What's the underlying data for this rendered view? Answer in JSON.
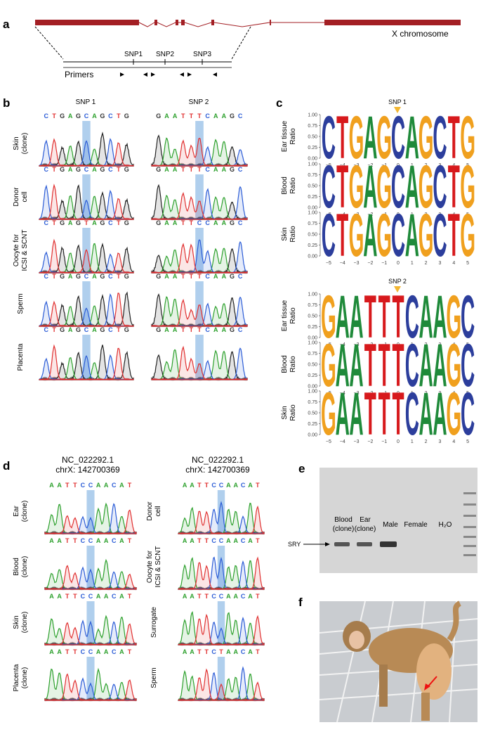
{
  "panel_a": {
    "label": "a",
    "chromosome": "X chromosome",
    "snps": [
      "SNP1",
      "SNP2",
      "SNP3"
    ],
    "primers": "Primers"
  },
  "panel_b": {
    "label": "b",
    "columns": [
      "SNP 1",
      "SNP 2"
    ],
    "rows": [
      {
        "label": [
          "Skin",
          "(clone)"
        ],
        "sequences": [
          "CTGAGCAGCTG",
          "GAATTTCAAGC"
        ]
      },
      {
        "label": [
          "Donor",
          "cell"
        ],
        "sequences": [
          "CTGAGCAGCTG",
          "GAATTTCAAGC"
        ]
      },
      {
        "label": [
          "Oocyte for",
          "ICSI & SCNT"
        ],
        "sequences": [
          "CTGAGTAGCTG",
          "GAATTCCAAGC"
        ]
      },
      {
        "label": [
          "Sperm"
        ],
        "sequences": [
          "CTGAGCAGCTG",
          "GAATTTCAAGC"
        ]
      },
      {
        "label": [
          "Placenta"
        ],
        "sequences": [
          "CTGAGCAGCTG",
          "GAATTTCAAGC"
        ]
      }
    ]
  },
  "panel_c": {
    "label": "c",
    "yticks": [
      "1.00",
      "0.75",
      "0.50",
      "0.25",
      "0.00"
    ],
    "xticks": [
      "−5",
      "−4",
      "−3",
      "−2",
      "−1",
      "0",
      "1",
      "2",
      "3",
      "4",
      "5"
    ],
    "groups": [
      {
        "snp": "SNP 1",
        "logos": [
          {
            "ylabel": [
              "Ear tissue",
              "Ratio"
            ],
            "sequence": "CTGAGCAGCTG"
          },
          {
            "ylabel": [
              "Blood",
              "Ratio"
            ],
            "sequence": "CTGAGCAGCTG"
          },
          {
            "ylabel": [
              "Skin",
              "Ratio"
            ],
            "sequence": "CTGAGCAGCTG"
          }
        ]
      },
      {
        "snp": "SNP 2",
        "logos": [
          {
            "ylabel": [
              "Ear tissue",
              "Ratio"
            ],
            "sequence": "GAATTTCAAGC"
          },
          {
            "ylabel": [
              "Blood",
              "Ratio"
            ],
            "sequence": "GAATTTCAAGC"
          },
          {
            "ylabel": [
              "Skin",
              "Ratio"
            ],
            "sequence": "GAATTTCAAGC"
          }
        ]
      }
    ]
  },
  "panel_d": {
    "label": "d",
    "columns": [
      {
        "header": [
          "NC_022292.1",
          "chrX: 142700369"
        ],
        "rows": [
          {
            "label": [
              "Ear",
              "(clone)"
            ],
            "sequence": "AATTCCAACAT"
          },
          {
            "label": [
              "Blood",
              "(clone)"
            ],
            "sequence": "AATTCCAACAT"
          },
          {
            "label": [
              "Skin",
              "(clone)"
            ],
            "sequence": "AATTCCAACAT"
          },
          {
            "label": [
              "Placenta",
              "(clone)"
            ],
            "sequence": "AATTCCAACAT"
          }
        ]
      },
      {
        "header": [
          "NC_022292.1",
          "chrX: 142700369"
        ],
        "rows": [
          {
            "label": [
              "Donor",
              "cell"
            ],
            "sequence": "AATTCCAACAT"
          },
          {
            "label": [
              "Oocyte for",
              "ICSI & SCNT"
            ],
            "sequence": "AATTCCAACAT"
          },
          {
            "label": [
              "Surrogate"
            ],
            "sequence": "AATTCCAACAT"
          },
          {
            "label": [
              "Sperm"
            ],
            "sequence": "AATTCTAACAT"
          }
        ]
      }
    ]
  },
  "panel_e": {
    "label": "e",
    "lanes": [
      [
        "Blood",
        "(clone)"
      ],
      [
        "Ear",
        "(clone)"
      ],
      [
        "Male"
      ],
      [
        "Female"
      ],
      [
        "H₂O"
      ]
    ],
    "marker": "SRY"
  },
  "panel_f": {
    "label": "f"
  }
}
